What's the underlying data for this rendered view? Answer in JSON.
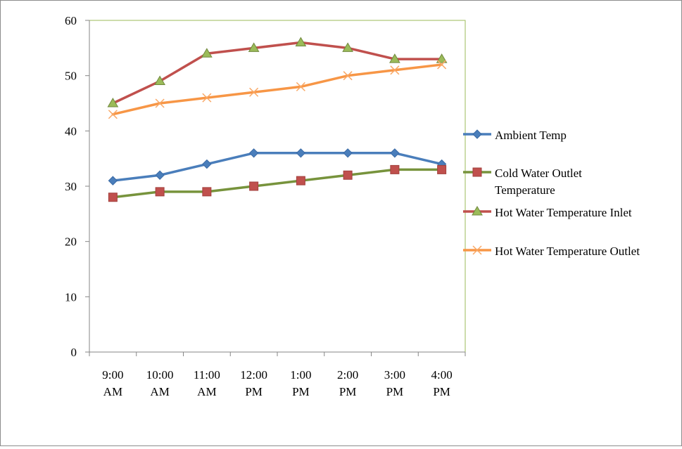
{
  "chart_data": {
    "type": "line",
    "title": "",
    "xlabel": "",
    "ylabel": "",
    "ylim": [
      0,
      60
    ],
    "yticks": [
      0,
      10,
      20,
      30,
      40,
      50,
      60
    ],
    "grid": false,
    "legend_position": "right",
    "categories": [
      [
        "9:00",
        "AM"
      ],
      [
        "10:00",
        "AM"
      ],
      [
        "11:00",
        "AM"
      ],
      [
        "12:00",
        "PM"
      ],
      [
        "1:00",
        "PM"
      ],
      [
        "2:00",
        "PM"
      ],
      [
        "3:00",
        "PM"
      ],
      [
        "4:00",
        "PM"
      ]
    ],
    "series": [
      {
        "name": "Ambient Temp",
        "legend_lines": [
          "Ambient Temp"
        ],
        "line_color": "#4a7ebb",
        "marker": "diamond",
        "marker_fill": "#4a7ebb",
        "marker_stroke": "#3a6aa5",
        "values": [
          31,
          32,
          34,
          36,
          36,
          36,
          36,
          34
        ]
      },
      {
        "name": "Cold Water Outlet Temperature",
        "legend_lines": [
          "Cold Water Outlet",
          "Temperature"
        ],
        "line_color": "#77933c",
        "marker": "square",
        "marker_fill": "#c0504d",
        "marker_stroke": "#a2413e",
        "values": [
          28,
          29,
          29,
          30,
          31,
          32,
          33,
          33
        ]
      },
      {
        "name": "Hot Water Temperature Inlet",
        "legend_lines": [
          "Hot Water Temperature Inlet"
        ],
        "line_color": "#c0504d",
        "marker": "triangle",
        "marker_fill": "#9bbb59",
        "marker_stroke": "#71893f",
        "values": [
          45,
          49,
          54,
          55,
          56,
          55,
          53,
          53
        ]
      },
      {
        "name": "Hot Water Temperature Outlet",
        "legend_lines": [
          "Hot Water Temperature Outlet"
        ],
        "line_color": "#f79646",
        "marker": "x",
        "marker_fill": "none",
        "marker_stroke": "#f9a866",
        "values": [
          43,
          45,
          46,
          47,
          48,
          50,
          51,
          52
        ]
      }
    ]
  }
}
